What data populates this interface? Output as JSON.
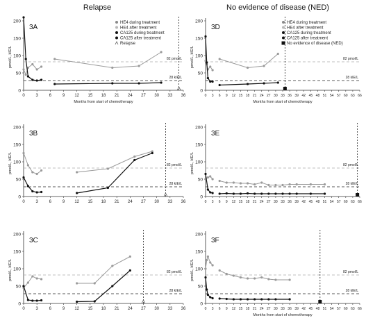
{
  "headers": {
    "left": "Relapse",
    "right": "No evidence of disease (NED)"
  },
  "xlabel": "Months from start of chemotherapy",
  "ylabel": "pmol/L, kIE/L",
  "ref_hi": "82 pmol/L",
  "ref_lo": "28 kIE/L",
  "legend_relapse": [
    "HE4 during treatment",
    "HE4 after treatment",
    "CA125 during treatment",
    "CA125 after treatment",
    "Relapse"
  ],
  "legend_ned": [
    "HE4 during treatment",
    "HE4 after treatment",
    "CA125 during treatment",
    "CA125 after treatment",
    "No evidence of disease (NED)"
  ],
  "colors": {
    "he4": "#9a9a9a",
    "ca125": "#111111",
    "ref": "#aaaaaa"
  },
  "chart_data": [
    {
      "type": "line",
      "panel": "3A",
      "group": "Relapse",
      "xlim": [
        0,
        36
      ],
      "ylim": [
        0,
        200
      ],
      "xticks": [
        0,
        3,
        6,
        9,
        12,
        15,
        18,
        21,
        24,
        27,
        30,
        33,
        36
      ],
      "yticks": [
        0,
        50,
        100,
        150,
        200
      ],
      "reference_lines": [
        82,
        28
      ],
      "event": {
        "kind": "relapse",
        "x": 35
      },
      "series": [
        {
          "name": "HE4 during treatment",
          "marker": "gray",
          "x": [
            0,
            0.5,
            1,
            2,
            3,
            4
          ],
          "y": [
            60,
            45,
            65,
            75,
            60,
            68
          ]
        },
        {
          "name": "HE4 after treatment",
          "marker": "gray",
          "x": [
            7,
            20,
            26,
            31
          ],
          "y": [
            90,
            65,
            70,
            110
          ]
        },
        {
          "name": "CA125 during treatment",
          "marker": "black",
          "x": [
            0,
            0.5,
            1,
            2,
            3,
            4
          ],
          "y": [
            210,
            90,
            40,
            30,
            28,
            30
          ]
        },
        {
          "name": "CA125 after treatment",
          "marker": "black",
          "x": [
            7,
            20,
            26,
            31
          ],
          "y": [
            18,
            20,
            20,
            22
          ]
        }
      ]
    },
    {
      "type": "line",
      "panel": "3B",
      "group": "Relapse",
      "xlim": [
        0,
        36
      ],
      "ylim": [
        0,
        200
      ],
      "xticks": [
        0,
        3,
        6,
        9,
        12,
        15,
        18,
        21,
        24,
        27,
        30,
        33,
        36
      ],
      "yticks": [
        0,
        50,
        100,
        150,
        200
      ],
      "reference_lines": [
        82,
        28
      ],
      "event": {
        "kind": "relapse",
        "x": 32
      },
      "series": [
        {
          "name": "HE4 during treatment",
          "marker": "gray",
          "x": [
            0,
            1,
            2,
            3,
            4
          ],
          "y": [
            125,
            90,
            70,
            65,
            75
          ]
        },
        {
          "name": "HE4 after treatment",
          "marker": "gray",
          "x": [
            12,
            19,
            25,
            29
          ],
          "y": [
            70,
            80,
            115,
            130
          ]
        },
        {
          "name": "CA125 during treatment",
          "marker": "black",
          "x": [
            0,
            1,
            2,
            3,
            4
          ],
          "y": [
            55,
            30,
            15,
            12,
            13
          ]
        },
        {
          "name": "CA125 after treatment",
          "marker": "black",
          "x": [
            12,
            19,
            25,
            29
          ],
          "y": [
            10,
            25,
            105,
            125
          ]
        }
      ]
    },
    {
      "type": "line",
      "panel": "3C",
      "group": "Relapse",
      "xlim": [
        0,
        36
      ],
      "ylim": [
        0,
        200
      ],
      "xticks": [
        0,
        3,
        6,
        9,
        12,
        15,
        18,
        21,
        24,
        27,
        30,
        33,
        36
      ],
      "yticks": [
        0,
        50,
        100,
        150,
        200
      ],
      "reference_lines": [
        82,
        28
      ],
      "event": {
        "kind": "relapse",
        "x": 27
      },
      "series": [
        {
          "name": "HE4 during treatment",
          "marker": "gray",
          "x": [
            0,
            1,
            2,
            3,
            4
          ],
          "y": [
            45,
            60,
            78,
            72,
            70
          ]
        },
        {
          "name": "HE4 after treatment",
          "marker": "gray",
          "x": [
            12,
            16,
            20,
            24
          ],
          "y": [
            58,
            58,
            108,
            135
          ]
        },
        {
          "name": "CA125 during treatment",
          "marker": "black",
          "x": [
            0,
            1,
            2,
            3,
            4
          ],
          "y": [
            50,
            10,
            8,
            8,
            9
          ]
        },
        {
          "name": "CA125 after treatment",
          "marker": "black",
          "x": [
            12,
            16,
            20,
            24
          ],
          "y": [
            5,
            6,
            50,
            95
          ]
        }
      ]
    },
    {
      "type": "line",
      "panel": "3D",
      "group": "NED",
      "xlim": [
        0,
        66
      ],
      "ylim": [
        0,
        200
      ],
      "xticks": [
        0,
        3,
        6,
        9,
        12,
        15,
        18,
        21,
        24,
        27,
        30,
        33,
        36,
        39,
        42,
        45,
        48,
        51,
        54,
        57,
        60,
        63,
        66
      ],
      "yticks": [
        0,
        50,
        100,
        150,
        200
      ],
      "reference_lines": [
        82,
        28
      ],
      "event": {
        "kind": "ned",
        "x": 34
      },
      "series": [
        {
          "name": "HE4 during treatment",
          "marker": "gray",
          "x": [
            0,
            0.5,
            1,
            2,
            3
          ],
          "y": [
            85,
            75,
            60,
            68,
            58
          ]
        },
        {
          "name": "HE4 after treatment",
          "marker": "gray",
          "x": [
            6,
            18,
            25,
            31
          ],
          "y": [
            90,
            65,
            70,
            105
          ]
        },
        {
          "name": "CA125 during treatment",
          "marker": "black",
          "x": [
            0,
            0.5,
            1,
            2,
            3
          ],
          "y": [
            155,
            80,
            35,
            25,
            25
          ]
        },
        {
          "name": "CA125 after treatment",
          "marker": "black",
          "x": [
            6,
            18,
            25,
            31
          ],
          "y": [
            15,
            18,
            20,
            22
          ]
        }
      ]
    },
    {
      "type": "line",
      "panel": "3E",
      "group": "NED",
      "xlim": [
        0,
        66
      ],
      "ylim": [
        0,
        200
      ],
      "xticks": [
        0,
        3,
        6,
        9,
        12,
        15,
        18,
        21,
        24,
        27,
        30,
        33,
        36,
        39,
        42,
        45,
        48,
        51,
        54,
        57,
        60,
        63,
        66
      ],
      "yticks": [
        0,
        50,
        100,
        150,
        200
      ],
      "reference_lines": [
        82,
        28
      ],
      "event": {
        "kind": "ned",
        "x": 65
      },
      "series": [
        {
          "name": "HE4 during treatment",
          "marker": "gray",
          "x": [
            0,
            1,
            2,
            3
          ],
          "y": [
            50,
            55,
            58,
            50
          ]
        },
        {
          "name": "HE4 after treatment",
          "marker": "gray",
          "x": [
            6,
            9,
            12,
            15,
            18,
            21,
            24,
            27,
            30,
            33,
            36,
            39,
            45,
            51
          ],
          "y": [
            45,
            40,
            40,
            38,
            38,
            35,
            40,
            33,
            33,
            33,
            35,
            35,
            35,
            35
          ]
        },
        {
          "name": "CA125 during treatment",
          "marker": "black",
          "x": [
            0,
            1,
            2,
            3
          ],
          "y": [
            65,
            20,
            12,
            10
          ]
        },
        {
          "name": "CA125 after treatment",
          "marker": "black",
          "x": [
            6,
            9,
            12,
            15,
            18,
            21,
            24,
            27,
            30,
            33,
            36,
            39,
            45,
            51
          ],
          "y": [
            8,
            9,
            8,
            8,
            9,
            8,
            8,
            8,
            8,
            8,
            8,
            8,
            8,
            8
          ]
        }
      ]
    },
    {
      "type": "line",
      "panel": "3F",
      "group": "NED",
      "xlim": [
        0,
        66
      ],
      "ylim": [
        0,
        200
      ],
      "xticks": [
        0,
        3,
        6,
        9,
        12,
        15,
        18,
        21,
        24,
        27,
        30,
        33,
        36,
        39,
        42,
        45,
        48,
        51,
        54,
        57,
        60,
        63,
        66
      ],
      "yticks": [
        0,
        50,
        100,
        150,
        200
      ],
      "reference_lines": [
        82,
        28
      ],
      "event": {
        "kind": "ned",
        "x": 49
      },
      "series": [
        {
          "name": "HE4 during treatment",
          "marker": "gray",
          "x": [
            0,
            0.5,
            1,
            2,
            3
          ],
          "y": [
            100,
            125,
            135,
            118,
            110
          ]
        },
        {
          "name": "HE4 after treatment",
          "marker": "gray",
          "x": [
            6,
            9,
            12,
            15,
            18,
            21,
            24,
            27,
            30,
            36
          ],
          "y": [
            95,
            85,
            80,
            75,
            72,
            72,
            75,
            70,
            68,
            68
          ]
        },
        {
          "name": "CA125 during treatment",
          "marker": "black",
          "x": [
            0,
            0.5,
            1,
            2,
            3
          ],
          "y": [
            75,
            40,
            25,
            18,
            15
          ]
        },
        {
          "name": "CA125 after treatment",
          "marker": "black",
          "x": [
            6,
            9,
            12,
            15,
            18,
            21,
            24,
            27,
            30,
            36
          ],
          "y": [
            14,
            13,
            12,
            12,
            12,
            12,
            12,
            12,
            12,
            12
          ]
        }
      ]
    }
  ]
}
